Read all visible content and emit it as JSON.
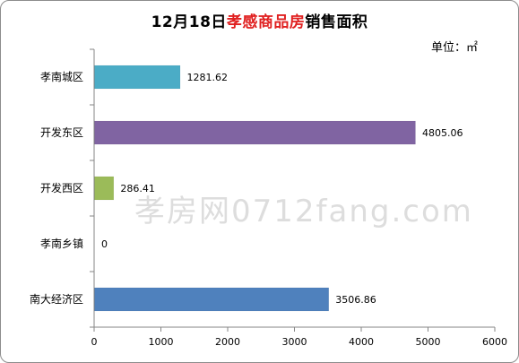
{
  "chart_data": {
    "type": "bar",
    "orientation": "horizontal",
    "title_prefix": "12月18日",
    "title_highlight": "孝感商品房",
    "title_suffix": "销售面积",
    "unit": "单位：㎡",
    "categories": [
      "孝南城区",
      "开发东区",
      "开发西区",
      "孝南乡镇",
      "南大经济区"
    ],
    "values": [
      1281.62,
      4805.06,
      286.41,
      0,
      3506.86
    ],
    "value_labels": [
      "1281.62",
      "4805.06",
      "286.41",
      "0",
      "3506.86"
    ],
    "bar_colors": [
      "#4bacc6",
      "#8064a2",
      "#9bbb59",
      "#c0504d",
      "#4f81bd"
    ],
    "xlim": [
      0,
      6000
    ],
    "x_ticks": [
      0,
      1000,
      2000,
      3000,
      4000,
      5000,
      6000
    ],
    "x_tick_labels": [
      "0",
      "1000",
      "2000",
      "3000",
      "4000",
      "5000",
      "6000"
    ],
    "grid": false,
    "legend": "none"
  },
  "watermark": "孝房网0712fang.com"
}
